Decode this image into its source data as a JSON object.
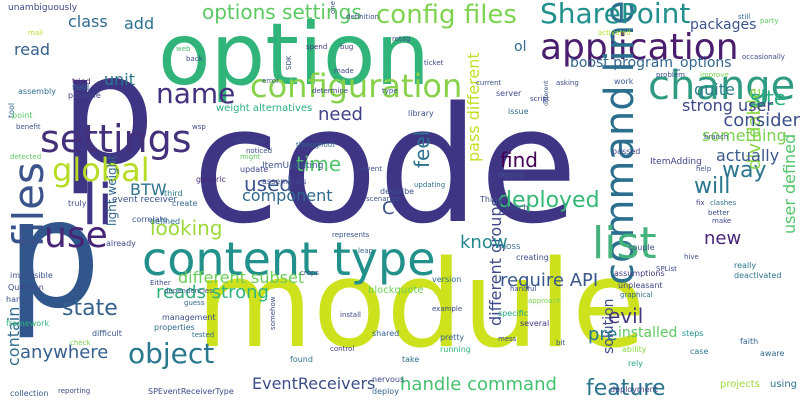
{
  "words": [
    {
      "text": "code",
      "color": "#3e3585"
    },
    {
      "text": "module",
      "color": "#cde11c"
    },
    {
      "text": "option",
      "color": "#30b47a"
    },
    {
      "text": "p",
      "color": "#3e3585"
    },
    {
      "text": "p",
      "color": "#30568c"
    },
    {
      "text": "content type",
      "color": "#22918b"
    },
    {
      "text": "application",
      "color": "#4a1d6e"
    },
    {
      "text": "change",
      "color": "#2f9b82"
    },
    {
      "text": "configuration",
      "color": "#87d24a"
    },
    {
      "text": "command line",
      "color": "#2b6f8e"
    },
    {
      "text": "list",
      "color": "#44b27d"
    },
    {
      "text": "settings",
      "color": "#44307b"
    },
    {
      "text": "use",
      "color": "#482677"
    },
    {
      "text": "li",
      "color": "#3e3585"
    },
    {
      "text": "global",
      "color": "#b7dc26"
    },
    {
      "text": "SharePoint",
      "color": "#21908c"
    },
    {
      "text": "config files",
      "color": "#7ed34f"
    },
    {
      "text": "options settings",
      "color": "#5bc862"
    },
    {
      "text": "files",
      "color": "#3a538b"
    },
    {
      "text": "name",
      "color": "#45327e"
    },
    {
      "text": "object",
      "color": "#2a788e"
    },
    {
      "text": "deployed",
      "color": "#35b778"
    },
    {
      "text": "state",
      "color": "#34618d"
    },
    {
      "text": "feature",
      "color": "#2a768e"
    },
    {
      "text": "looking",
      "color": "#9dd93b"
    },
    {
      "text": "different subset",
      "color": "#6ccd5a"
    },
    {
      "text": "reads strong",
      "color": "#2fb47c"
    },
    {
      "text": "require API",
      "color": "#38578c"
    },
    {
      "text": "handle command",
      "color": "#46c06f"
    },
    {
      "text": "EventReceivers",
      "color": "#3c4d8a"
    },
    {
      "text": "anywhere",
      "color": "#355f8d"
    },
    {
      "text": "solution",
      "color": "#3d4c8a"
    },
    {
      "text": "different groups",
      "color": "#3e4a89"
    },
    {
      "text": "pass different",
      "color": "#c2df23"
    },
    {
      "text": "used",
      "color": "#3a548c"
    },
    {
      "text": "time",
      "color": "#4fc46a"
    },
    {
      "text": "component",
      "color": "#31688e"
    },
    {
      "text": "need",
      "color": "#414287"
    },
    {
      "text": "feel",
      "color": "#2c728e"
    },
    {
      "text": "know",
      "color": "#24878e"
    },
    {
      "text": "find",
      "color": "#440154"
    },
    {
      "text": "will",
      "color": "#2a768e"
    },
    {
      "text": "way",
      "color": "#2b758e"
    },
    {
      "text": "new",
      "color": "#482475"
    },
    {
      "text": "evil",
      "color": "#453781"
    },
    {
      "text": "pre",
      "color": "#2a788e"
    },
    {
      "text": "C",
      "color": "#3b528b"
    },
    {
      "text": "BTW",
      "color": "#2c728e"
    },
    {
      "text": "dividable",
      "color": "#8bd646"
    },
    {
      "text": "user defined",
      "color": "#52c569"
    },
    {
      "text": "site",
      "color": "#29af7f"
    },
    {
      "text": "consider",
      "color": "#3c508b"
    },
    {
      "text": "something",
      "color": "#7ad151"
    },
    {
      "text": "strong user",
      "color": "#3f4788"
    },
    {
      "text": "quite",
      "color": "#2a7b8e"
    },
    {
      "text": "actually",
      "color": "#38588c"
    },
    {
      "text": "installed",
      "color": "#5ec962"
    },
    {
      "text": "contain",
      "color": "#2f6c8e"
    },
    {
      "text": "light weight",
      "color": "#31668e"
    },
    {
      "text": "unit",
      "color": "#2a778e"
    },
    {
      "text": "class",
      "color": "#2f6b8e"
    },
    {
      "text": "add",
      "color": "#2d718e"
    },
    {
      "text": "read",
      "color": "#35608d"
    },
    {
      "text": "packages",
      "color": "#3b528b"
    },
    {
      "text": "boost program_options",
      "color": "#32658e"
    },
    {
      "text": "ol",
      "color": "#2f6c8e"
    },
    {
      "text": "weight alternatives",
      "color": "#27ad81"
    },
    {
      "text": "projects",
      "color": "#9bd93c"
    },
    {
      "text": "using",
      "color": "#2c728e"
    },
    {
      "text": "blockquote",
      "color": "#6ece58"
    },
    {
      "text": "ItemUpdating",
      "color": "#39568c"
    },
    {
      "text": "ItemAdding",
      "color": "#414287"
    },
    {
      "text": "unambiguously",
      "color": "#3f4889"
    },
    {
      "text": "assembly",
      "color": "#2f6c8e"
    },
    {
      "text": "tool",
      "color": "#31678e"
    },
    {
      "text": "point",
      "color": "#5ac864"
    },
    {
      "text": "field",
      "color": "#32648e"
    },
    {
      "text": "tried",
      "color": "#482677"
    },
    {
      "text": "possible",
      "color": "#3f4788"
    },
    {
      "text": "event receiver",
      "color": "#3b518b"
    },
    {
      "text": "generic",
      "color": "#472c7a"
    },
    {
      "text": "impossible",
      "color": "#3c4f8a"
    },
    {
      "text": "Question",
      "color": "#3e4989"
    },
    {
      "text": "handle",
      "color": "#3b518b"
    },
    {
      "text": "difficult",
      "color": "#39558c"
    },
    {
      "text": "collection",
      "color": "#375b8d"
    },
    {
      "text": "framework",
      "color": "#2fb47c"
    },
    {
      "text": "properties",
      "color": "#2f6b8e"
    },
    {
      "text": "management",
      "color": "#3c4f8a"
    },
    {
      "text": "shared",
      "color": "#34618d"
    },
    {
      "text": "nervous",
      "color": "#3f4889"
    },
    {
      "text": "deploy",
      "color": "#31668e"
    },
    {
      "text": "found",
      "color": "#2c728e"
    },
    {
      "text": "take",
      "color": "#2c718e"
    },
    {
      "text": "running",
      "color": "#2eb37c"
    },
    {
      "text": "pretty",
      "color": "#34618d"
    },
    {
      "text": "several",
      "color": "#443983"
    },
    {
      "text": "specific",
      "color": "#21a685"
    },
    {
      "text": "steps",
      "color": "#218f8d"
    },
    {
      "text": "ability",
      "color": "#8bd646"
    },
    {
      "text": "case",
      "color": "#2a778e"
    },
    {
      "text": "rely",
      "color": "#25ac82"
    },
    {
      "text": "faith",
      "color": "#32658e"
    },
    {
      "text": "aware",
      "color": "#31688e"
    },
    {
      "text": "deployment",
      "color": "#414287"
    },
    {
      "text": "SPEventReceiverType",
      "color": "#3e4a89"
    },
    {
      "text": "reporting",
      "color": "#3e4989"
    },
    {
      "text": "control",
      "color": "#453781"
    },
    {
      "text": "install",
      "color": "#3f4788"
    },
    {
      "text": "assumptions",
      "color": "#443a83"
    },
    {
      "text": "unpleasant",
      "color": "#3e4989"
    },
    {
      "text": "couple",
      "color": "#3b518b"
    },
    {
      "text": "deactivated",
      "color": "#2c738e"
    },
    {
      "text": "really",
      "color": "#2a788e"
    },
    {
      "text": "creating",
      "color": "#3c4f8a"
    },
    {
      "text": "version",
      "color": "#2d718e"
    },
    {
      "text": "MOSS",
      "color": "#2f6c8e"
    },
    {
      "text": "crops",
      "color": "#3b528b"
    },
    {
      "text": "leap",
      "color": "#32658e"
    },
    {
      "text": "represents",
      "color": "#3b518b"
    },
    {
      "text": "already",
      "color": "#3e4a89"
    },
    {
      "text": "correlate",
      "color": "#39568c"
    },
    {
      "text": "defined",
      "color": "#2f6c8e"
    },
    {
      "text": "create",
      "color": "#31678e"
    },
    {
      "text": "third",
      "color": "#2a788e"
    },
    {
      "text": "truly",
      "color": "#3f4889"
    },
    {
      "text": "describe",
      "color": "#3c4f8a"
    },
    {
      "text": "updating",
      "color": "#2c718e"
    },
    {
      "text": "Things",
      "color": "#3e4989"
    },
    {
      "text": "much",
      "color": "#39558c"
    },
    {
      "text": "digging",
      "color": "#3b528b"
    },
    {
      "text": "passed",
      "color": "#3f4788"
    },
    {
      "text": "assemblies",
      "color": "#3e4a89"
    },
    {
      "text": "update",
      "color": "#414287"
    },
    {
      "text": "noticed",
      "color": "#3c4f8a"
    },
    {
      "text": "reluctant",
      "color": "#3f4788"
    },
    {
      "text": "throughout",
      "color": "#2f6b8e"
    },
    {
      "text": "library",
      "color": "#3b528b"
    },
    {
      "text": "issue",
      "color": "#31688e"
    },
    {
      "text": "server",
      "color": "#3e4989"
    },
    {
      "text": "work",
      "color": "#375b8d"
    },
    {
      "text": "problem",
      "color": "#3c4f8a"
    },
    {
      "text": "improve",
      "color": "#7ad151"
    },
    {
      "text": "current",
      "color": "#3b528b"
    },
    {
      "text": "type",
      "color": "#3b528b"
    },
    {
      "text": "determine",
      "color": "#3f4788"
    },
    {
      "text": "made",
      "color": "#3e4989"
    },
    {
      "text": "error",
      "color": "#39568c"
    },
    {
      "text": "SDK",
      "color": "#3b528b"
    },
    {
      "text": "spend",
      "color": "#453781"
    },
    {
      "text": "bug",
      "color": "#414287"
    },
    {
      "text": "ticket",
      "color": "#3e4a89"
    },
    {
      "text": "activated",
      "color": "#b5de2b"
    },
    {
      "text": "still",
      "color": "#2f6c8e"
    },
    {
      "text": "occasionally",
      "color": "#3e4989"
    },
    {
      "text": "one",
      "color": "#3b528b"
    },
    {
      "text": "definition",
      "color": "#3c4f8a"
    },
    {
      "text": "retag",
      "color": "#3f4889"
    },
    {
      "text": "web",
      "color": "#4ac16d"
    },
    {
      "text": "back",
      "color": "#3e4989"
    },
    {
      "text": "help",
      "color": "#3b528b"
    },
    {
      "text": "fix",
      "color": "#414287"
    },
    {
      "text": "clashes",
      "color": "#2f6c8e"
    },
    {
      "text": "better",
      "color": "#3c4f8a"
    },
    {
      "text": "make",
      "color": "#3e4989"
    },
    {
      "text": "hive",
      "color": "#3b528b"
    },
    {
      "text": "SPList",
      "color": "#3c4f8a"
    },
    {
      "text": "bit",
      "color": "#3b528b"
    },
    {
      "text": "mess",
      "color": "#3f4788"
    },
    {
      "text": "tested",
      "color": "#2f6c8e"
    },
    {
      "text": "guess",
      "color": "#32658e"
    },
    {
      "text": "example",
      "color": "#3e4989"
    },
    {
      "text": "benefit",
      "color": "#3b528b"
    },
    {
      "text": "detected",
      "color": "#5ec962"
    },
    {
      "text": "wsp",
      "color": "#3e4989"
    },
    {
      "text": "might",
      "color": "#5ec962"
    },
    {
      "text": "Either",
      "color": "#3c4f8a"
    },
    {
      "text": "dependencies",
      "color": "#39568c"
    },
    {
      "text": "somehow",
      "color": "#3e4a89"
    },
    {
      "text": "handful",
      "color": "#3c4f8a"
    },
    {
      "text": "approach",
      "color": "#7ad151"
    },
    {
      "text": "graphical",
      "color": "#2f6c8e"
    },
    {
      "text": "script",
      "color": "#3e4989"
    },
    {
      "text": "different",
      "color": "#3b528b"
    },
    {
      "text": "asking",
      "color": "#3e4989"
    },
    {
      "text": "party",
      "color": "#5ec962"
    },
    {
      "text": "branch",
      "color": "#3c4f8a"
    },
    {
      "text": "scenarios",
      "color": "#3b528b"
    },
    {
      "text": "event",
      "color": "#3c4f8a"
    },
    {
      "text": "mail",
      "color": "#b5de2b"
    },
    {
      "text": "check",
      "color": "#7ad151"
    }
  ]
}
